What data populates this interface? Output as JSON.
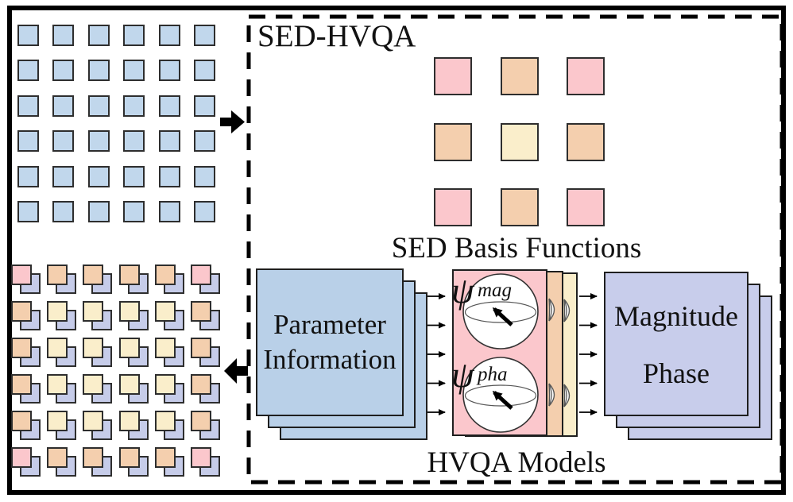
{
  "figure": {
    "title": "SED-HVQA",
    "basis_label": "SED Basis Functions",
    "models_label": "HVQA Models"
  },
  "colors": {
    "blue": "#c1d7ec",
    "pink": "#fbc7cc",
    "orange": "#f4cfae",
    "yellow": "#faeecb",
    "lavender": "#c6cce9",
    "param_blue": "#b9d0e8",
    "mag_lavender": "#c8cdeb"
  },
  "input_grid": {
    "rows": 6,
    "cols": 6,
    "color": "blue"
  },
  "basis_grid": {
    "cells": [
      [
        "pink",
        "orange",
        "pink"
      ],
      [
        "orange",
        "yellow",
        "orange"
      ],
      [
        "pink",
        "orange",
        "pink"
      ]
    ]
  },
  "output_grid": {
    "back_color": "lavender",
    "front_cells": [
      [
        "pink",
        "orange",
        "orange",
        "orange",
        "orange",
        "pink"
      ],
      [
        "orange",
        "yellow",
        "yellow",
        "yellow",
        "yellow",
        "orange"
      ],
      [
        "orange",
        "yellow",
        "yellow",
        "yellow",
        "yellow",
        "orange"
      ],
      [
        "orange",
        "yellow",
        "yellow",
        "yellow",
        "yellow",
        "orange"
      ],
      [
        "orange",
        "yellow",
        "yellow",
        "yellow",
        "yellow",
        "orange"
      ],
      [
        "pink",
        "orange",
        "orange",
        "orange",
        "orange",
        "pink"
      ]
    ]
  },
  "parameter_stack": {
    "line1": "Parameter",
    "line2": "Information"
  },
  "magnitude_stack": {
    "line1": "Magnitude",
    "line2": "Phase"
  },
  "hvqa_models": {
    "psi": "ψ",
    "mag_subscript": "mag",
    "pha_subscript": "pha"
  }
}
